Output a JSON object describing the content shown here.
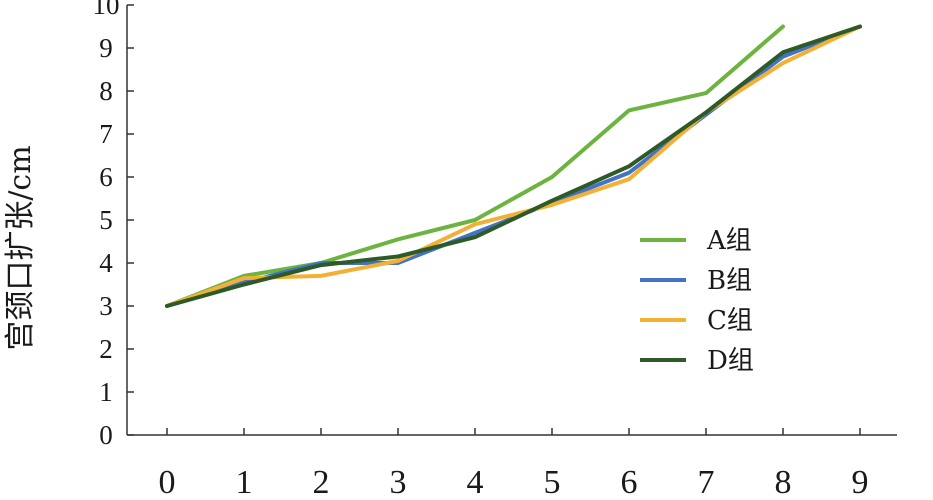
{
  "chart_data": {
    "type": "line",
    "ylabel": "宫颈口扩张/cm",
    "xlabel": "",
    "x": [
      0,
      1,
      2,
      3,
      4,
      5,
      6,
      7,
      8,
      9
    ],
    "xlim": [
      0,
      9
    ],
    "ylim": [
      0,
      10
    ],
    "yticks": [
      0,
      1,
      2,
      3,
      4,
      5,
      6,
      7,
      8,
      9,
      10
    ],
    "grid": false,
    "legend_position": "right",
    "series": [
      {
        "name": "A组",
        "color": "#6db33f",
        "values": [
          3.0,
          3.7,
          4.0,
          4.55,
          5.0,
          6.0,
          7.55,
          7.95,
          9.5,
          null
        ]
      },
      {
        "name": "B组",
        "color": "#4472c4",
        "values": [
          3.0,
          3.55,
          4.0,
          4.0,
          4.7,
          5.4,
          6.1,
          7.45,
          8.8,
          9.5
        ]
      },
      {
        "name": "C组",
        "color": "#f2b134",
        "values": [
          3.0,
          3.65,
          3.7,
          4.05,
          4.9,
          5.35,
          5.95,
          7.5,
          8.65,
          9.5
        ]
      },
      {
        "name": "D组",
        "color": "#2d5a27",
        "values": [
          3.0,
          3.5,
          3.95,
          4.15,
          4.6,
          5.45,
          6.25,
          7.5,
          8.9,
          9.5
        ]
      }
    ]
  }
}
